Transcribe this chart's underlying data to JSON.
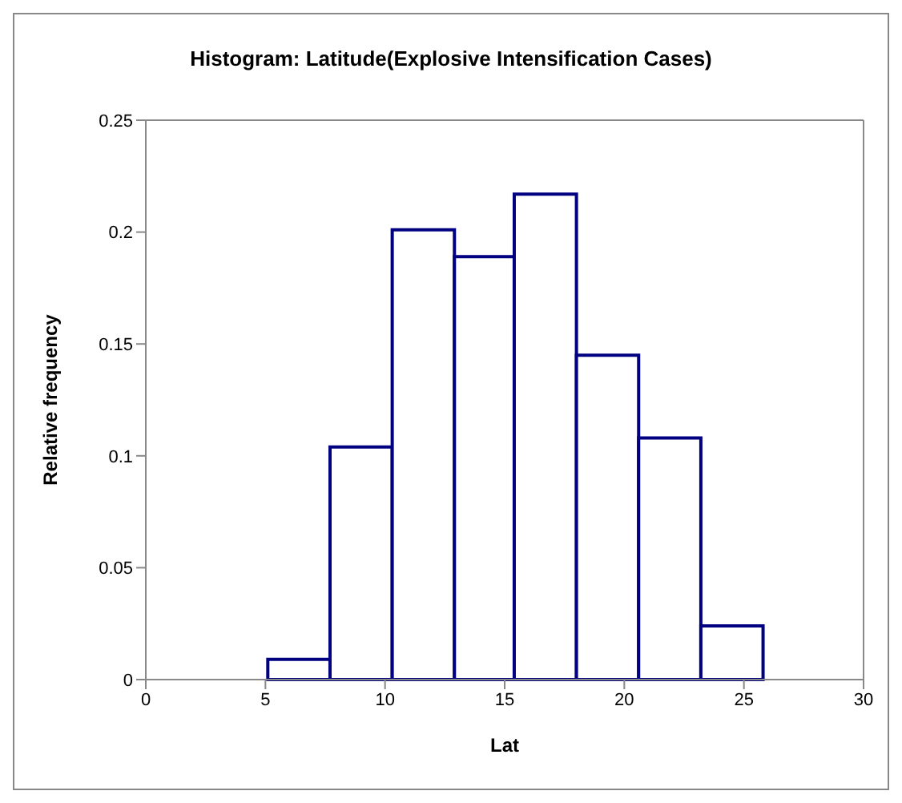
{
  "chart_data": {
    "type": "histogram",
    "title": "Histogram: Latitude(Explosive Intensification Cases)",
    "xlabel": "Lat",
    "ylabel": "Relative frequency",
    "bins": [
      5.1,
      7.7,
      10.3,
      12.9,
      15.4,
      18.0,
      20.6,
      23.2,
      25.8
    ],
    "values": [
      0.009,
      0.104,
      0.201,
      0.189,
      0.217,
      0.145,
      0.108,
      0.024
    ],
    "color": "#000080",
    "xlim": [
      0,
      30
    ],
    "xticks": [
      0,
      5,
      10,
      15,
      20,
      25,
      30
    ],
    "ylim": [
      0,
      0.25
    ],
    "yticks": [
      0,
      0.05,
      0.1,
      0.15,
      0.2,
      0.25
    ],
    "grid": false
  }
}
